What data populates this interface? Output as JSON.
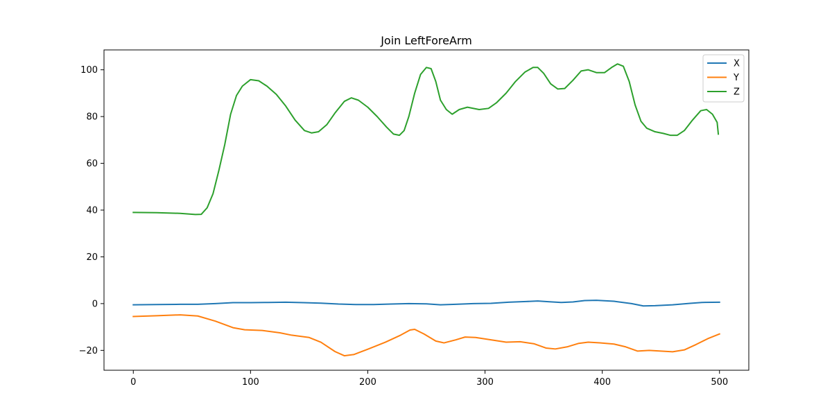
{
  "chart_data": {
    "type": "line",
    "title": "Join LeftForeArm",
    "xlabel": "",
    "ylabel": "",
    "xlim": [
      -25,
      525
    ],
    "ylim": [
      -28.5,
      108.5
    ],
    "xticks": [
      0,
      100,
      200,
      300,
      400,
      500
    ],
    "yticks": [
      -20,
      0,
      20,
      40,
      60,
      80,
      100
    ],
    "grid": false,
    "legend_position": "top-right",
    "series": [
      {
        "name": "X",
        "color": "#1f77b4",
        "points": [
          [
            0,
            -0.5
          ],
          [
            20,
            -0.4
          ],
          [
            40,
            -0.3
          ],
          [
            55,
            -0.3
          ],
          [
            70,
            0
          ],
          [
            85,
            0.4
          ],
          [
            100,
            0.4
          ],
          [
            115,
            0.5
          ],
          [
            130,
            0.6
          ],
          [
            145,
            0.4
          ],
          [
            160,
            0.2
          ],
          [
            175,
            -0.2
          ],
          [
            190,
            -0.4
          ],
          [
            205,
            -0.4
          ],
          [
            220,
            -0.2
          ],
          [
            235,
            0
          ],
          [
            250,
            -0.1
          ],
          [
            262,
            -0.5
          ],
          [
            275,
            -0.3
          ],
          [
            290,
            0
          ],
          [
            305,
            0.1
          ],
          [
            320,
            0.6
          ],
          [
            335,
            0.9
          ],
          [
            345,
            1.1
          ],
          [
            355,
            0.8
          ],
          [
            365,
            0.5
          ],
          [
            375,
            0.7
          ],
          [
            385,
            1.3
          ],
          [
            395,
            1.4
          ],
          [
            410,
            1.0
          ],
          [
            425,
            0
          ],
          [
            435,
            -1.0
          ],
          [
            445,
            -0.9
          ],
          [
            460,
            -0.5
          ],
          [
            475,
            0.1
          ],
          [
            485,
            0.5
          ],
          [
            500,
            0.6
          ]
        ]
      },
      {
        "name": "Y",
        "color": "#ff7f0e",
        "points": [
          [
            0,
            -5.5
          ],
          [
            20,
            -5.2
          ],
          [
            40,
            -4.8
          ],
          [
            55,
            -5.3
          ],
          [
            70,
            -7.5
          ],
          [
            85,
            -10.3
          ],
          [
            95,
            -11.2
          ],
          [
            110,
            -11.5
          ],
          [
            125,
            -12.5
          ],
          [
            135,
            -13.5
          ],
          [
            150,
            -14.5
          ],
          [
            160,
            -16.5
          ],
          [
            172,
            -20.5
          ],
          [
            180,
            -22.3
          ],
          [
            188,
            -21.8
          ],
          [
            200,
            -19.5
          ],
          [
            215,
            -16.5
          ],
          [
            228,
            -13.5
          ],
          [
            236,
            -11.3
          ],
          [
            240,
            -11.0
          ],
          [
            248,
            -13.0
          ],
          [
            258,
            -16.0
          ],
          [
            265,
            -16.8
          ],
          [
            275,
            -15.5
          ],
          [
            283,
            -14.3
          ],
          [
            292,
            -14.5
          ],
          [
            305,
            -15.5
          ],
          [
            318,
            -16.5
          ],
          [
            330,
            -16.3
          ],
          [
            342,
            -17.2
          ],
          [
            352,
            -19.0
          ],
          [
            360,
            -19.4
          ],
          [
            370,
            -18.5
          ],
          [
            380,
            -17.0
          ],
          [
            388,
            -16.5
          ],
          [
            398,
            -16.8
          ],
          [
            410,
            -17.3
          ],
          [
            420,
            -18.5
          ],
          [
            430,
            -20.3
          ],
          [
            440,
            -20.0
          ],
          [
            450,
            -20.3
          ],
          [
            460,
            -20.6
          ],
          [
            470,
            -19.8
          ],
          [
            480,
            -17.5
          ],
          [
            490,
            -15.0
          ],
          [
            500,
            -13.0
          ]
        ]
      },
      {
        "name": "Z",
        "color": "#2ca02c",
        "points": [
          [
            0,
            39
          ],
          [
            20,
            38.9
          ],
          [
            40,
            38.6
          ],
          [
            53,
            38.1
          ],
          [
            58,
            38.2
          ],
          [
            63,
            41
          ],
          [
            68,
            47
          ],
          [
            73,
            57
          ],
          [
            78,
            68
          ],
          [
            83,
            81
          ],
          [
            88,
            89
          ],
          [
            93,
            93
          ],
          [
            100,
            95.8
          ],
          [
            107,
            95.3
          ],
          [
            114,
            93
          ],
          [
            122,
            89.5
          ],
          [
            130,
            84.5
          ],
          [
            138,
            78.5
          ],
          [
            146,
            74
          ],
          [
            152,
            73
          ],
          [
            158,
            73.5
          ],
          [
            165,
            76.5
          ],
          [
            172,
            81.5
          ],
          [
            180,
            86.5
          ],
          [
            186,
            88
          ],
          [
            192,
            87
          ],
          [
            200,
            84
          ],
          [
            208,
            80
          ],
          [
            216,
            75.5
          ],
          [
            222,
            72.5
          ],
          [
            227,
            72
          ],
          [
            231,
            74
          ],
          [
            235,
            80
          ],
          [
            240,
            90
          ],
          [
            245,
            98
          ],
          [
            250,
            101
          ],
          [
            254,
            100.5
          ],
          [
            258,
            95
          ],
          [
            262,
            87
          ],
          [
            267,
            83
          ],
          [
            272,
            81
          ],
          [
            278,
            83
          ],
          [
            285,
            84
          ],
          [
            295,
            83
          ],
          [
            303,
            83.5
          ],
          [
            310,
            86
          ],
          [
            318,
            90
          ],
          [
            326,
            95
          ],
          [
            334,
            99
          ],
          [
            341,
            101
          ],
          [
            345,
            101
          ],
          [
            350,
            98.5
          ],
          [
            356,
            94
          ],
          [
            362,
            91.8
          ],
          [
            368,
            92
          ],
          [
            375,
            95.5
          ],
          [
            382,
            99.5
          ],
          [
            388,
            100
          ],
          [
            395,
            98.8
          ],
          [
            402,
            98.8
          ],
          [
            408,
            101
          ],
          [
            413,
            102.5
          ],
          [
            418,
            101.5
          ],
          [
            423,
            95
          ],
          [
            428,
            85
          ],
          [
            433,
            78
          ],
          [
            438,
            75
          ],
          [
            445,
            73.5
          ],
          [
            452,
            72.8
          ],
          [
            458,
            72
          ],
          [
            464,
            72
          ],
          [
            470,
            74
          ],
          [
            477,
            78.5
          ],
          [
            484,
            82.5
          ],
          [
            489,
            83
          ],
          [
            494,
            81
          ],
          [
            498,
            77.5
          ],
          [
            499,
            72.5
          ]
        ]
      }
    ]
  }
}
